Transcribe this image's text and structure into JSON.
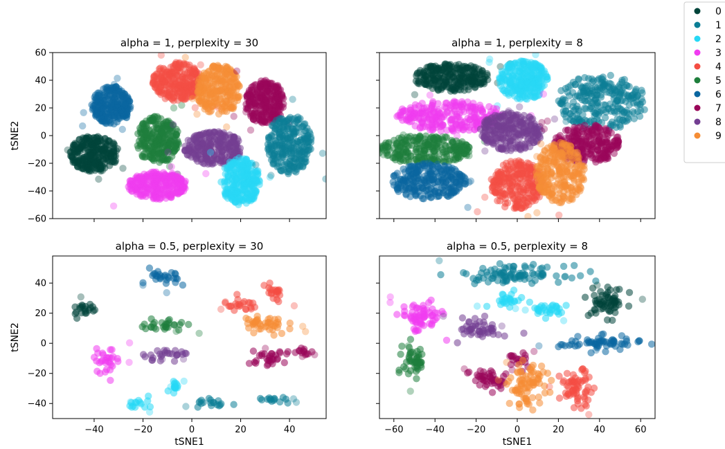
{
  "colors": {
    "0": "#00443a",
    "1": "#0b7e95",
    "2": "#27d8f5",
    "3": "#f03cf0",
    "4": "#f44d43",
    "5": "#1e7e3c",
    "6": "#0a66a0",
    "7": "#990659",
    "8": "#733e92",
    "9": "#f58d35"
  },
  "legend": {
    "entries": [
      "0",
      "1",
      "2",
      "3",
      "4",
      "5",
      "6",
      "7",
      "8",
      "9"
    ],
    "placement": "top-right, outside axes"
  },
  "chart_data": [
    {
      "type": "scatter",
      "title": "alpha = 1, perplexity = 30",
      "xlabel": "",
      "ylabel": "tSNE2",
      "xlim": [
        -57,
        55
      ],
      "ylim": [
        -60,
        60
      ],
      "xticks": [
        -40,
        -20,
        0,
        20,
        40
      ],
      "yticks": [
        -60,
        -40,
        -20,
        0,
        20,
        40,
        60
      ],
      "show_xticklabels": false,
      "show_yticklabels": true,
      "grid": false,
      "clusters": [
        {
          "label": "0",
          "cx": -40,
          "cy": -13,
          "rx": 10,
          "ry": 13
        },
        {
          "label": "6",
          "cx": -33,
          "cy": 22,
          "rx": 8,
          "ry": 14
        },
        {
          "label": "5",
          "cx": -14,
          "cy": -3,
          "rx": 9,
          "ry": 17
        },
        {
          "label": "3",
          "cx": -14,
          "cy": -36,
          "rx": 12,
          "ry": 10
        },
        {
          "label": "4",
          "cx": -6,
          "cy": 39,
          "rx": 10,
          "ry": 14
        },
        {
          "label": "9",
          "cx": 11,
          "cy": 33,
          "rx": 9,
          "ry": 18
        },
        {
          "label": "8",
          "cx": 9,
          "cy": -9,
          "rx": 12,
          "ry": 12
        },
        {
          "label": "2",
          "cx": 20,
          "cy": -33,
          "rx": 8,
          "ry": 17
        },
        {
          "label": "7",
          "cx": 30,
          "cy": 24,
          "rx": 8,
          "ry": 16
        },
        {
          "label": "1",
          "cx": 40,
          "cy": -6,
          "rx": 9,
          "ry": 22
        }
      ]
    },
    {
      "type": "scatter",
      "title": "alpha = 1, perplexity = 8",
      "xlabel": "",
      "ylabel": "",
      "xlim": [
        -67,
        67
      ],
      "ylim": [
        -60,
        60
      ],
      "xticks": [
        -60,
        -40,
        -20,
        0,
        20,
        40,
        60
      ],
      "yticks": [
        -60,
        -40,
        -20,
        0,
        20,
        40,
        60
      ],
      "show_xticklabels": false,
      "show_yticklabels": false,
      "grid": false,
      "clusters": [
        {
          "label": "0",
          "cx": -32,
          "cy": 42,
          "rx": 18,
          "ry": 10
        },
        {
          "label": "2",
          "cx": 3,
          "cy": 40,
          "rx": 12,
          "ry": 14
        },
        {
          "label": "1",
          "cx": 41,
          "cy": 24,
          "rx": 22,
          "ry": 20
        },
        {
          "label": "3",
          "cx": -33,
          "cy": 14,
          "rx": 27,
          "ry": 11
        },
        {
          "label": "5",
          "cx": -45,
          "cy": -10,
          "rx": 23,
          "ry": 10
        },
        {
          "label": "6",
          "cx": -43,
          "cy": -33,
          "rx": 18,
          "ry": 13
        },
        {
          "label": "8",
          "cx": -3,
          "cy": 3,
          "rx": 15,
          "ry": 14
        },
        {
          "label": "7",
          "cx": 34,
          "cy": -6,
          "rx": 16,
          "ry": 14
        },
        {
          "label": "4",
          "cx": 0,
          "cy": -36,
          "rx": 13,
          "ry": 18
        },
        {
          "label": "9",
          "cx": 21,
          "cy": -27,
          "rx": 12,
          "ry": 22
        }
      ]
    },
    {
      "type": "scatter",
      "title": "alpha = 0.5, perplexity = 30",
      "xlabel": "tSNE1",
      "ylabel": "tSNE2",
      "xlim": [
        -57,
        55
      ],
      "ylim": [
        -50,
        58
      ],
      "xticks": [
        -40,
        -20,
        0,
        20,
        40
      ],
      "yticks": [
        -40,
        -20,
        0,
        20,
        40
      ],
      "show_xticklabels": true,
      "show_yticklabels": true,
      "grid": false,
      "clusters": [
        {
          "label": "0",
          "cx": -44,
          "cy": 23,
          "rx": 6,
          "ry": 6
        },
        {
          "label": "3",
          "cx": -35,
          "cy": -12,
          "rx": 6,
          "ry": 9
        },
        {
          "label": "6",
          "cx": -11,
          "cy": 43,
          "rx": 7,
          "ry": 7
        },
        {
          "label": "5",
          "cx": -12,
          "cy": 12,
          "rx": 10,
          "ry": 5
        },
        {
          "label": "8",
          "cx": -9,
          "cy": -7,
          "rx": 12,
          "ry": 4
        },
        {
          "label": "2",
          "cx": -20,
          "cy": -40,
          "rx": 6,
          "ry": 4
        },
        {
          "label": "2",
          "cx": -7,
          "cy": -30,
          "rx": 3,
          "ry": 4
        },
        {
          "label": "1",
          "cx": 10,
          "cy": -40,
          "rx": 10,
          "ry": 3
        },
        {
          "label": "1",
          "cx": 34,
          "cy": -38,
          "rx": 8,
          "ry": 3
        },
        {
          "label": "4",
          "cx": 20,
          "cy": 25,
          "rx": 8,
          "ry": 5
        },
        {
          "label": "4",
          "cx": 33,
          "cy": 33,
          "rx": 6,
          "ry": 6
        },
        {
          "label": "9",
          "cx": 30,
          "cy": 12,
          "rx": 10,
          "ry": 8
        },
        {
          "label": "7",
          "cx": 30,
          "cy": -10,
          "rx": 10,
          "ry": 5
        },
        {
          "label": "7",
          "cx": 45,
          "cy": -5,
          "rx": 5,
          "ry": 4
        }
      ]
    },
    {
      "type": "scatter",
      "title": "alpha = 0.5, perplexity = 8",
      "xlabel": "tSNE1",
      "ylabel": "",
      "xlim": [
        -67,
        67
      ],
      "ylim": [
        -50,
        58
      ],
      "xticks": [
        -60,
        -40,
        -20,
        0,
        20,
        40,
        60
      ],
      "yticks": [
        -40,
        -20,
        0,
        20,
        40
      ],
      "show_xticklabels": true,
      "show_yticklabels": false,
      "grid": false,
      "clusters": [
        {
          "label": "1",
          "cx": -2,
          "cy": 46,
          "rx": 28,
          "ry": 6
        },
        {
          "label": "0",
          "cx": 44,
          "cy": 27,
          "rx": 10,
          "ry": 11
        },
        {
          "label": "2",
          "cx": -5,
          "cy": 29,
          "rx": 9,
          "ry": 5
        },
        {
          "label": "2",
          "cx": 15,
          "cy": 22,
          "rx": 11,
          "ry": 5
        },
        {
          "label": "3",
          "cx": -47,
          "cy": 17,
          "rx": 11,
          "ry": 11
        },
        {
          "label": "8",
          "cx": -18,
          "cy": 10,
          "rx": 11,
          "ry": 8
        },
        {
          "label": "5",
          "cx": -50,
          "cy": -12,
          "rx": 6,
          "ry": 14
        },
        {
          "label": "6",
          "cx": 40,
          "cy": 0,
          "rx": 22,
          "ry": 5
        },
        {
          "label": "7",
          "cx": -14,
          "cy": -24,
          "rx": 10,
          "ry": 8
        },
        {
          "label": "7",
          "cx": 0,
          "cy": -12,
          "rx": 5,
          "ry": 7
        },
        {
          "label": "9",
          "cx": 5,
          "cy": -28,
          "rx": 10,
          "ry": 15
        },
        {
          "label": "4",
          "cx": 29,
          "cy": -30,
          "rx": 9,
          "ry": 13
        }
      ]
    }
  ]
}
